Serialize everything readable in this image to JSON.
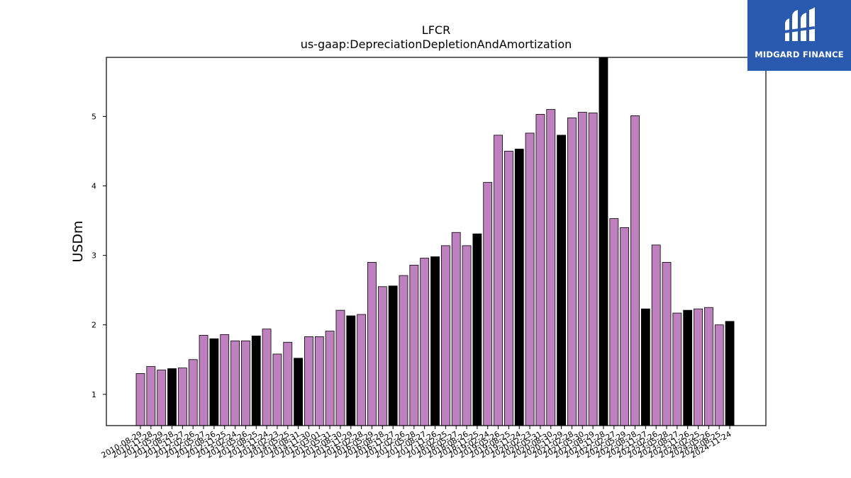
{
  "brand": {
    "name": "MIDGARD FINANCE",
    "bg_color": "#2a5ab0"
  },
  "chart_data": {
    "type": "bar",
    "title": "LFCR",
    "subtitle": "us-gaap:DepreciationDepletionAndAmortization",
    "xlabel": "",
    "ylabel": "USDm",
    "ylim": [
      0.55,
      5.85
    ],
    "yticks": [
      1,
      2,
      3,
      4,
      5
    ],
    "colors": {
      "quarter": "#bf80bf",
      "annual": "#000000"
    },
    "x": [
      "2010-08-29",
      "2010-11-28",
      "2011-05-29",
      "2011-08-28",
      "2011-11-27",
      "2012-02-26",
      "2012-05-27",
      "2012-08-26",
      "2012-11-25",
      "2013-02-24",
      "2013-05-26",
      "2013-08-25",
      "2013-11-24",
      "2014-02-23",
      "2014-05-25",
      "2014-08-31",
      "2014-11-30",
      "2015-03-01",
      "2015-05-31",
      "2015-08-30",
      "2015-11-29",
      "2016-02-28",
      "2016-05-29",
      "2016-08-28",
      "2016-11-27",
      "2017-02-26",
      "2017-05-28",
      "2017-08-27",
      "2017-11-26",
      "2018-02-25",
      "2018-05-27",
      "2018-08-26",
      "2018-11-25",
      "2019-02-24",
      "2019-05-26",
      "2019-08-25",
      "2019-11-24",
      "2020-02-23",
      "2020-05-31",
      "2020-08-30",
      "2020-11-29",
      "2021-02-28",
      "2021-05-30",
      "2021-08-29",
      "2021-11-28",
      "2022-02-27",
      "2022-05-29",
      "2022-08-28",
      "2022-11-27",
      "2023-02-26",
      "2023-05-28",
      "2023-08-27",
      "2023-11-26",
      "2024-02-25",
      "2024-05-26",
      "2024-08-25",
      "2024-11-24"
    ],
    "values": [
      1.3,
      1.4,
      1.35,
      1.37,
      1.38,
      1.5,
      1.85,
      1.8,
      1.86,
      1.77,
      1.77,
      1.84,
      1.94,
      1.58,
      1.75,
      1.52,
      1.83,
      1.83,
      1.91,
      2.21,
      2.13,
      2.15,
      2.9,
      2.55,
      2.56,
      2.71,
      2.86,
      2.96,
      2.98,
      3.14,
      3.33,
      3.14,
      3.31,
      4.05,
      4.73,
      4.5,
      4.53,
      4.76,
      5.03,
      5.1,
      4.73,
      4.98,
      5.06,
      5.05,
      5.85,
      3.53,
      3.4,
      5.01,
      2.23,
      3.15,
      2.9,
      2.17,
      2.21,
      2.23,
      2.25,
      2.0,
      2.05
    ],
    "annual": [
      false,
      false,
      false,
      true,
      false,
      false,
      false,
      true,
      false,
      false,
      false,
      true,
      false,
      false,
      false,
      true,
      false,
      false,
      false,
      false,
      true,
      false,
      false,
      false,
      true,
      false,
      false,
      false,
      true,
      false,
      false,
      false,
      true,
      false,
      false,
      false,
      true,
      false,
      false,
      false,
      true,
      false,
      false,
      false,
      true,
      false,
      false,
      false,
      true,
      false,
      false,
      false,
      true,
      false,
      false,
      false,
      true
    ]
  }
}
